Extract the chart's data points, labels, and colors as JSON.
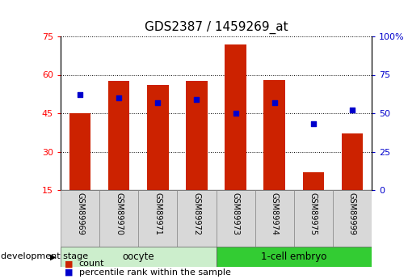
{
  "title": "GDS2387 / 1459269_at",
  "categories": [
    "GSM89969",
    "GSM89970",
    "GSM89971",
    "GSM89972",
    "GSM89973",
    "GSM89974",
    "GSM89975",
    "GSM89999"
  ],
  "counts": [
    45.0,
    57.5,
    56.0,
    57.5,
    72.0,
    58.0,
    22.0,
    37.0
  ],
  "percentiles": [
    62,
    60,
    57,
    59,
    50,
    57,
    43,
    52
  ],
  "bar_color": "#cc2200",
  "dot_color": "#0000cc",
  "yleft_min": 15,
  "yleft_max": 75,
  "yright_min": 0,
  "yright_max": 100,
  "yleft_ticks": [
    15,
    30,
    45,
    60,
    75
  ],
  "yright_ticks": [
    0,
    25,
    50,
    75,
    100
  ],
  "yright_tick_labels": [
    "0",
    "25",
    "50",
    "75",
    "100%"
  ],
  "groups": [
    {
      "label": "oocyte",
      "start": 0,
      "end": 3,
      "color": "#cceecc"
    },
    {
      "label": "1-cell embryo",
      "start": 4,
      "end": 7,
      "color": "#33cc33"
    }
  ],
  "group_label": "development stage",
  "legend_count_label": "count",
  "legend_percentile_label": "percentile rank within the sample",
  "title_fontsize": 11,
  "tick_fontsize": 8,
  "bar_width": 0.55
}
